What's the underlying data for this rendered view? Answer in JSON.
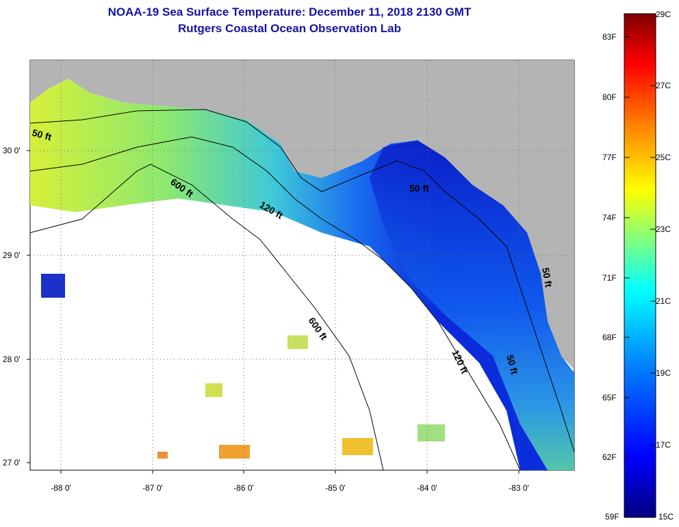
{
  "title": {
    "line1": "NOAA-19 Sea Surface Temperature:  December 11, 2018 2130 GMT",
    "line2": "Rutgers Coastal Ocean Observation Lab"
  },
  "map": {
    "y_ticks": [
      "30 0'",
      "29 0'",
      "28 0'",
      "27 0'"
    ],
    "x_ticks": [
      "-88 0'",
      "-87 0'",
      "-86 0'",
      "-85 0'",
      "-84 0'",
      "-83 0'"
    ],
    "contours": [
      "50 ft",
      "600 ft",
      "120 ft",
      "50 ft",
      "600 ft",
      "120 ft",
      "50 ft",
      "50 ft"
    ],
    "colors": {
      "land": "#b4b4b4",
      "coast": "#0000ff"
    }
  },
  "colorbar": {
    "fahrenheit": [
      "83F",
      "80F",
      "77F",
      "74F",
      "71F",
      "68F",
      "65F",
      "62F",
      "59F"
    ],
    "celsius": [
      "29C",
      "27C",
      "25C",
      "23C",
      "21C",
      "19C",
      "17C",
      "15C"
    ],
    "range_c": [
      15,
      29
    ],
    "colors": [
      "#000080",
      "#0000ff",
      "#0080ff",
      "#00ffff",
      "#80ff80",
      "#ffff00",
      "#ff8000",
      "#ff0000",
      "#800000"
    ]
  }
}
